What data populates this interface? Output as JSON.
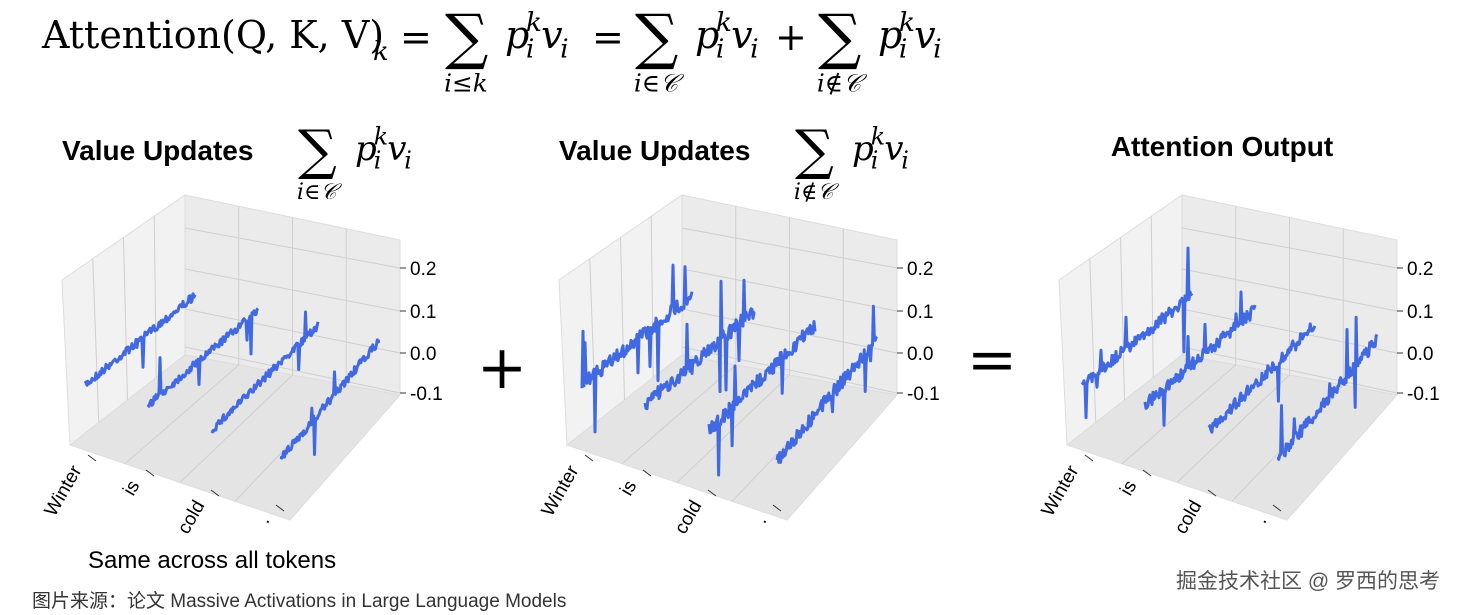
{
  "equation": {
    "lhs": "Attention(Q, K, V)",
    "lhs_sub": "k",
    "equals": "=",
    "plus": "+",
    "sum": "∑",
    "p": "p",
    "p_sup": "k",
    "p_sub": "i",
    "v": "v",
    "v_sub": "i",
    "ranges": [
      "i≤k",
      "i∈𝒞",
      "i∉𝒞"
    ]
  },
  "panels": [
    {
      "title": "Value Updates",
      "sum_range": "i∈𝒞"
    },
    {
      "title": "Value Updates",
      "sum_range": "i∉𝒞"
    },
    {
      "title": "Attention Output"
    }
  ],
  "zticks": [
    "0.2",
    "0.1",
    "0.0",
    "-0.1"
  ],
  "tokens": [
    "Winter",
    "is",
    "cold",
    "."
  ],
  "operators": [
    "+",
    "="
  ],
  "note": "Same across all tokens",
  "caption": "图片来源：论文 Massive Activations in Large Language Models",
  "watermark": "掘金技术社区 @ 罗西的思考"
}
